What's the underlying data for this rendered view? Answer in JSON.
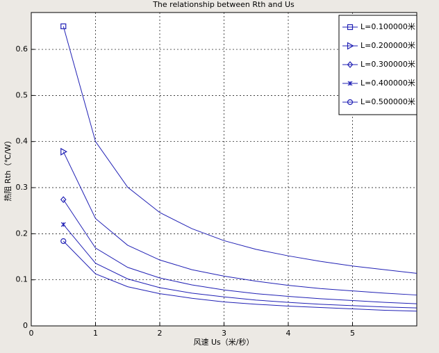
{
  "chart_data": {
    "type": "line",
    "title": "The relationship between Rth and Us",
    "x_label": "风速 Us（米/秒）",
    "y_label": "热阻 Rth（℃/W）",
    "x": [
      0.5,
      1,
      1.5,
      2,
      2.5,
      3,
      3.5,
      4,
      4.5,
      5,
      5.5,
      6
    ],
    "series": [
      {
        "name": "L=0.100000米",
        "color": "#1f1fb4",
        "marker": "square",
        "values": [
          0.65,
          0.4,
          0.301,
          0.246,
          0.211,
          0.185,
          0.166,
          0.152,
          0.14,
          0.13,
          0.122,
          0.114
        ]
      },
      {
        "name": "L=0.200000米",
        "color": "#1f1fb4",
        "marker": "triangle-right",
        "values": [
          0.378,
          0.233,
          0.175,
          0.143,
          0.122,
          0.108,
          0.097,
          0.088,
          0.081,
          0.076,
          0.071,
          0.067
        ]
      },
      {
        "name": "L=0.300000米",
        "color": "#1f1fb4",
        "marker": "diamond",
        "values": [
          0.274,
          0.169,
          0.127,
          0.104,
          0.089,
          0.078,
          0.07,
          0.064,
          0.059,
          0.055,
          0.051,
          0.048
        ]
      },
      {
        "name": "L=0.400000米",
        "color": "#1f1fb4",
        "marker": "star",
        "values": [
          0.22,
          0.136,
          0.102,
          0.083,
          0.071,
          0.063,
          0.056,
          0.051,
          0.047,
          0.044,
          0.041,
          0.039
        ]
      },
      {
        "name": "L=0.500000米",
        "color": "#1f1fb4",
        "marker": "circle",
        "values": [
          0.184,
          0.113,
          0.085,
          0.07,
          0.06,
          0.052,
          0.047,
          0.043,
          0.04,
          0.037,
          0.034,
          0.032
        ]
      }
    ],
    "xlim": [
      0,
      6
    ],
    "xticks": [
      0,
      1,
      2,
      3,
      4,
      5
    ],
    "ylim": [
      0,
      0.68
    ],
    "yticks": [
      0,
      0.1,
      0.2,
      0.3,
      0.4,
      0.5,
      0.6
    ],
    "grid": true,
    "legend": "top-right"
  }
}
